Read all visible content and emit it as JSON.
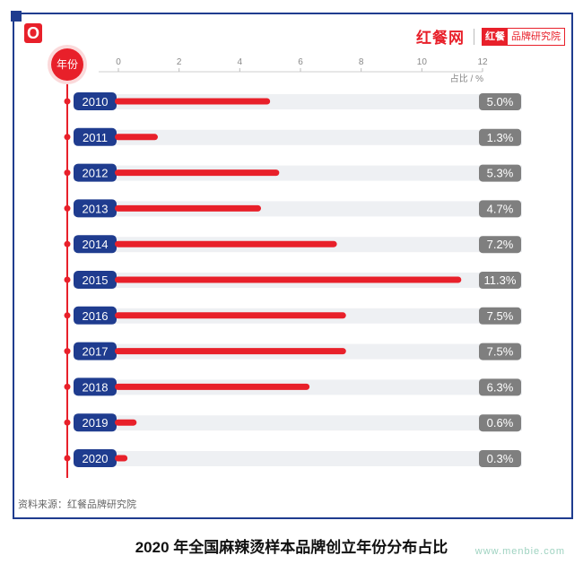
{
  "header": {
    "brand_main": "红餐网",
    "brand_box_red": "红餐",
    "brand_box_text": "品牌研究院"
  },
  "footer": {
    "source": "资料来源：红餐品牌研究院",
    "watermark": "www.menbie.com"
  },
  "title": "2020 年全国麻辣烫样本品牌创立年份分布占比",
  "colors": {
    "frame": "#1f3c8f",
    "accent_red": "#e8202a",
    "year_pill": "#1f3c8f",
    "value_pill": "#7f7f7f",
    "track": "#eef0f3"
  },
  "chart_data": {
    "type": "bar",
    "orientation": "horizontal",
    "title": "2020 年全国麻辣烫样本品牌创立年份分布占比",
    "ylabel": "年份",
    "xlabel": "占比 / %",
    "xlim": [
      0,
      12
    ],
    "xticks": [
      0,
      2,
      4,
      6,
      8,
      10,
      12
    ],
    "categories": [
      "2010",
      "2011",
      "2012",
      "2013",
      "2014",
      "2015",
      "2016",
      "2017",
      "2018",
      "2019",
      "2020"
    ],
    "values": [
      5.0,
      1.3,
      5.3,
      4.7,
      7.2,
      11.3,
      7.5,
      7.5,
      6.3,
      0.6,
      0.3
    ],
    "value_labels": [
      "5.0%",
      "1.3%",
      "5.3%",
      "4.7%",
      "7.2%",
      "11.3%",
      "7.5%",
      "7.5%",
      "6.3%",
      "0.6%",
      "0.3%"
    ],
    "grid": false,
    "legend": "none"
  }
}
